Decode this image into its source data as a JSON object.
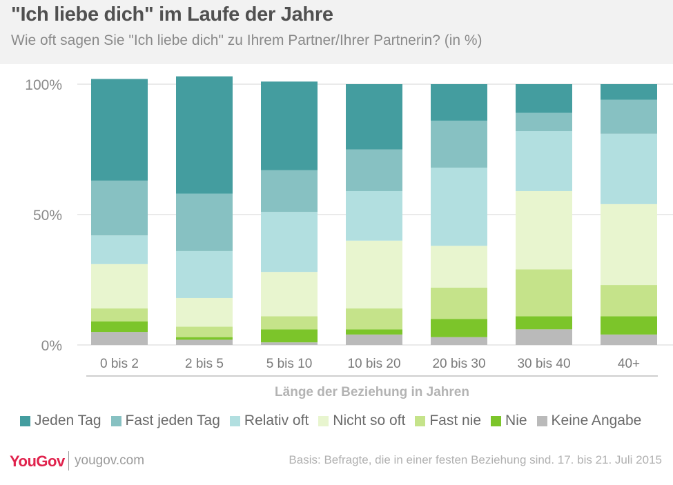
{
  "header": {
    "title": "\"Ich liebe dich\" im Laufe der Jahre",
    "subtitle": "Wie oft sagen Sie \"Ich liebe dich\" zu Ihrem Partner/Ihrer Partnerin? (in %)"
  },
  "footer": {
    "logo": "YouGov",
    "site": "yougov.com",
    "basis": "Basis: Befragte, die in einer festen Beziehung sind. 17. bis 21. Juli 2015"
  },
  "chart_data": {
    "type": "bar",
    "stacked": true,
    "title": "\"Ich liebe dich\" im Laufe der Jahre",
    "xlabel": "Länge der Beziehung in Jahren",
    "ylabel": "",
    "ylim": [
      0,
      100
    ],
    "yticks": [
      {
        "value": 0,
        "label": "0%"
      },
      {
        "value": 50,
        "label": "50%"
      },
      {
        "value": 100,
        "label": "100%"
      }
    ],
    "grid": true,
    "legend_position": "bottom",
    "categories": [
      "0 bis 2",
      "2 bis 5",
      "5 bis 10",
      "10 bis 20",
      "20 bis 30",
      "30 bis 40",
      "40+"
    ],
    "series": [
      {
        "name": "Keine Angabe",
        "color": "#bababa",
        "values": [
          5,
          2,
          1,
          4,
          3,
          6,
          4
        ]
      },
      {
        "name": "Nie",
        "color": "#7cc52a",
        "values": [
          4,
          1,
          5,
          2,
          7,
          5,
          7
        ]
      },
      {
        "name": "Fast nie",
        "color": "#c5e38a",
        "values": [
          5,
          4,
          5,
          8,
          12,
          18,
          12
        ]
      },
      {
        "name": "Nicht so oft",
        "color": "#e8f5cf",
        "values": [
          17,
          11,
          17,
          26,
          16,
          30,
          31
        ]
      },
      {
        "name": "Relativ oft",
        "color": "#b2dfe0",
        "values": [
          11,
          18,
          23,
          19,
          30,
          23,
          27
        ]
      },
      {
        "name": "Fast jeden Tag",
        "color": "#87c1c2",
        "values": [
          21,
          22,
          16,
          16,
          18,
          7,
          13
        ]
      },
      {
        "name": "Jeden Tag",
        "color": "#449d9f",
        "values": [
          39,
          45,
          34,
          25,
          14,
          11,
          6
        ]
      }
    ],
    "legend_order": [
      "Jeden Tag",
      "Fast jeden Tag",
      "Relativ oft",
      "Nicht so oft",
      "Fast nie",
      "Nie",
      "Keine Angabe"
    ]
  }
}
